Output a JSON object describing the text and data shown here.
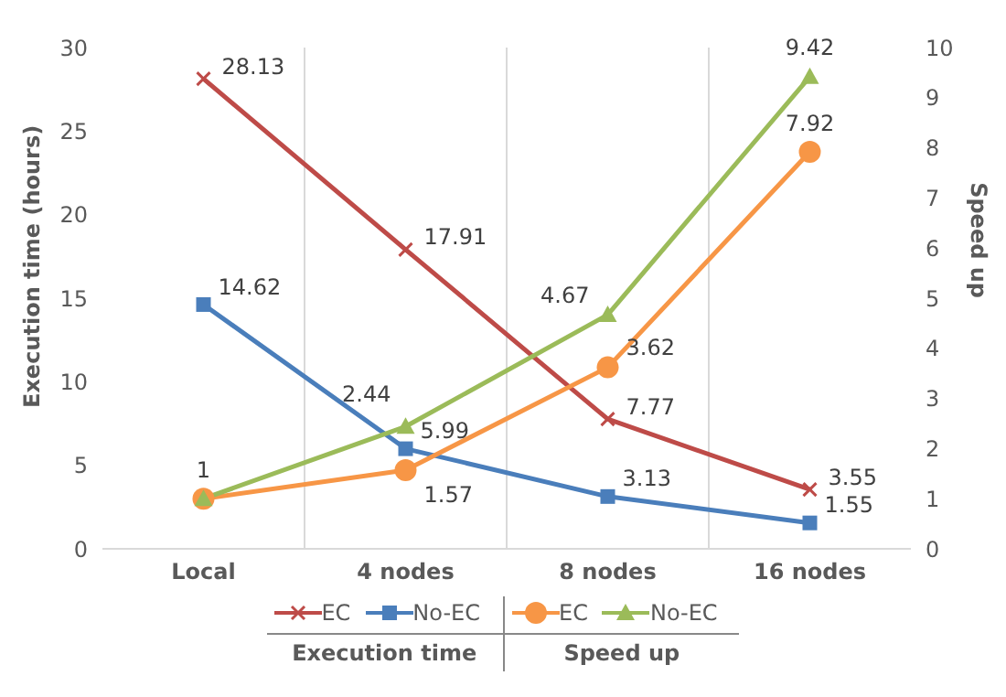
{
  "chart_data": {
    "type": "line",
    "categories": [
      "Local",
      "4 nodes",
      "8 nodes",
      "16 nodes"
    ],
    "ylabel": "Execution time (hours)",
    "y2label": "Speed up",
    "ylim": [
      0,
      30
    ],
    "yticks": [
      0,
      5,
      10,
      15,
      20,
      25,
      30
    ],
    "y2lim": [
      0,
      10
    ],
    "y2ticks": [
      0,
      1,
      2,
      3,
      4,
      5,
      6,
      7,
      8,
      9,
      10
    ],
    "grid": "x",
    "legend": "bottom",
    "data_labels": true,
    "annotations": [
      "Execution time",
      "Speed up"
    ],
    "series": [
      {
        "name": "EC",
        "color": "#be4b48",
        "values": [
          28.13,
          17.91,
          7.77,
          3.55
        ],
        "marker": "cross"
      },
      {
        "name": "No-EC",
        "color": "#4a7ebb",
        "values": [
          14.62,
          5.99,
          3.13,
          1.55
        ],
        "marker": "square"
      },
      {
        "name": "EC",
        "color": "#f79646",
        "values": [
          1,
          1.57,
          3.62,
          7.92
        ],
        "axis": "y2",
        "marker": "circle",
        "value_labels": [
          null,
          "1.57",
          "3.62",
          "7.92"
        ]
      },
      {
        "name": "No-EC",
        "color": "#9bbb59",
        "values": [
          1,
          2.44,
          4.67,
          9.42
        ],
        "axis": "y2",
        "marker": "triangle",
        "value_labels": [
          "1",
          "2.44",
          "4.67",
          "9.42"
        ]
      }
    ]
  }
}
